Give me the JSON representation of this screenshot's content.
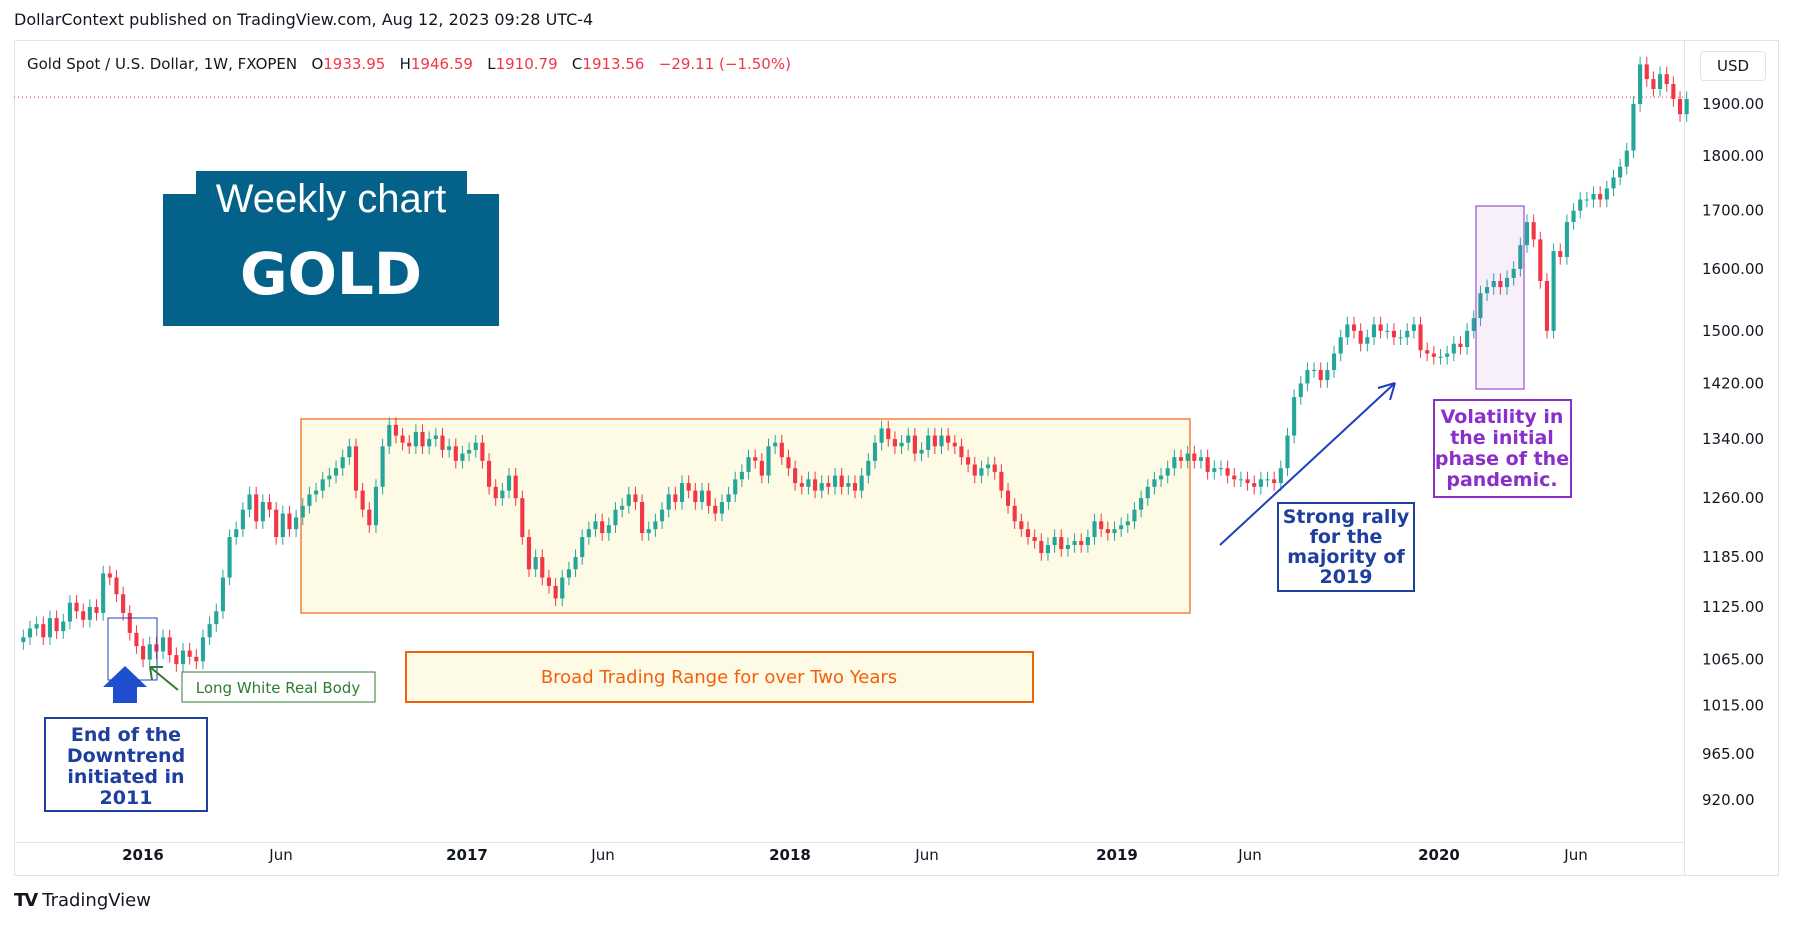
{
  "publisher_caption": "DollarContext published on TradingView.com, Aug 12, 2023 09:28 UTC-4",
  "symbol": {
    "name": "Gold Spot / U.S. Dollar, 1W, FXOPEN",
    "open_label": "O",
    "open": "1933.95",
    "high_label": "H",
    "high": "1946.59",
    "low_label": "L",
    "low": "1910.79",
    "close_label": "C",
    "close": "1913.56",
    "change": "−29.11 (−1.50%)"
  },
  "currency_button": "USD",
  "title_box": {
    "line1": "Weekly chart",
    "line2": "GOLD"
  },
  "branding": "TradingView",
  "colors": {
    "up": "#26a69a",
    "down": "#f23645",
    "title_bg": "#04628a",
    "range": "#f2600c",
    "rally": "#1f3fbf",
    "pandemic": "#8a2fc8"
  },
  "chart_data": {
    "type": "candlestick",
    "timeframe": "1W",
    "y_axis": {
      "scale": "log",
      "ticks": [
        "1900.00",
        "1800.00",
        "1700.00",
        "1600.00",
        "1500.00",
        "1420.00",
        "1340.00",
        "1260.00",
        "1185.00",
        "1125.00",
        "1065.00",
        "1015.00",
        "965.00",
        "920.00"
      ]
    },
    "x_axis": {
      "ticks": [
        "2016",
        "Jun",
        "2017",
        "Jun",
        "2018",
        "Jun",
        "2019",
        "Jun",
        "2020",
        "Jun"
      ],
      "range": [
        "2015-07",
        "2020-09"
      ]
    },
    "last_price_line": 1913.56,
    "annotations": [
      {
        "name": "end-downtrend",
        "text": "End of the Downtrend initiated in 2011"
      },
      {
        "name": "long-white-body",
        "text": "Long White Real Body"
      },
      {
        "name": "trading-range",
        "text": "Broad Trading Range for over Two Years",
        "y_range": [
          1125,
          1375
        ]
      },
      {
        "name": "strong-rally",
        "text": "Strong rally for the majority of 2019"
      },
      {
        "name": "pandemic-volatility",
        "text": "Volatility in the initial phase of the pandemic.",
        "y_range": [
          1450,
          1705
        ]
      }
    ],
    "series": [
      {
        "name": "XAUUSD",
        "closes": [
          1090,
          1100,
          1105,
          1090,
          1112,
          1097,
          1108,
          1130,
          1120,
          1110,
          1125,
          1118,
          1165,
          1160,
          1140,
          1118,
          1095,
          1080,
          1065,
          1082,
          1074,
          1090,
          1070,
          1060,
          1075,
          1068,
          1063,
          1090,
          1105,
          1120,
          1160,
          1210,
          1220,
          1245,
          1265,
          1230,
          1255,
          1245,
          1210,
          1240,
          1220,
          1235,
          1250,
          1265,
          1270,
          1285,
          1290,
          1300,
          1315,
          1330,
          1270,
          1245,
          1225,
          1275,
          1330,
          1360,
          1345,
          1335,
          1330,
          1350,
          1330,
          1340,
          1345,
          1325,
          1330,
          1310,
          1320,
          1325,
          1335,
          1310,
          1275,
          1260,
          1270,
          1290,
          1260,
          1210,
          1170,
          1185,
          1160,
          1150,
          1135,
          1160,
          1170,
          1185,
          1210,
          1220,
          1230,
          1215,
          1225,
          1245,
          1250,
          1265,
          1255,
          1215,
          1220,
          1230,
          1245,
          1265,
          1255,
          1280,
          1270,
          1255,
          1270,
          1250,
          1240,
          1255,
          1265,
          1285,
          1295,
          1315,
          1310,
          1290,
          1330,
          1335,
          1315,
          1300,
          1280,
          1275,
          1285,
          1270,
          1280,
          1275,
          1290,
          1275,
          1280,
          1270,
          1290,
          1310,
          1335,
          1355,
          1340,
          1330,
          1335,
          1345,
          1320,
          1325,
          1345,
          1330,
          1345,
          1335,
          1330,
          1315,
          1305,
          1290,
          1300,
          1305,
          1295,
          1270,
          1250,
          1230,
          1220,
          1210,
          1205,
          1190,
          1200,
          1210,
          1195,
          1200,
          1205,
          1200,
          1210,
          1230,
          1220,
          1215,
          1220,
          1225,
          1230,
          1245,
          1260,
          1275,
          1285,
          1290,
          1300,
          1315,
          1310,
          1320,
          1310,
          1315,
          1295,
          1300,
          1300,
          1290,
          1285,
          1285,
          1280,
          1275,
          1285,
          1285,
          1280,
          1300,
          1345,
          1400,
          1420,
          1440,
          1440,
          1425,
          1440,
          1465,
          1490,
          1510,
          1500,
          1480,
          1490,
          1510,
          1500,
          1500,
          1490,
          1490,
          1500,
          1510,
          1470,
          1465,
          1460,
          1460,
          1465,
          1480,
          1475,
          1500,
          1520,
          1560,
          1570,
          1580,
          1570,
          1585,
          1600,
          1640,
          1680,
          1650,
          1580,
          1500,
          1630,
          1620,
          1680,
          1700,
          1720,
          1720,
          1730,
          1720,
          1740,
          1760,
          1780,
          1810,
          1900,
          1980,
          1950,
          1930,
          1960,
          1940,
          1910,
          1880,
          1910
        ]
      }
    ]
  }
}
